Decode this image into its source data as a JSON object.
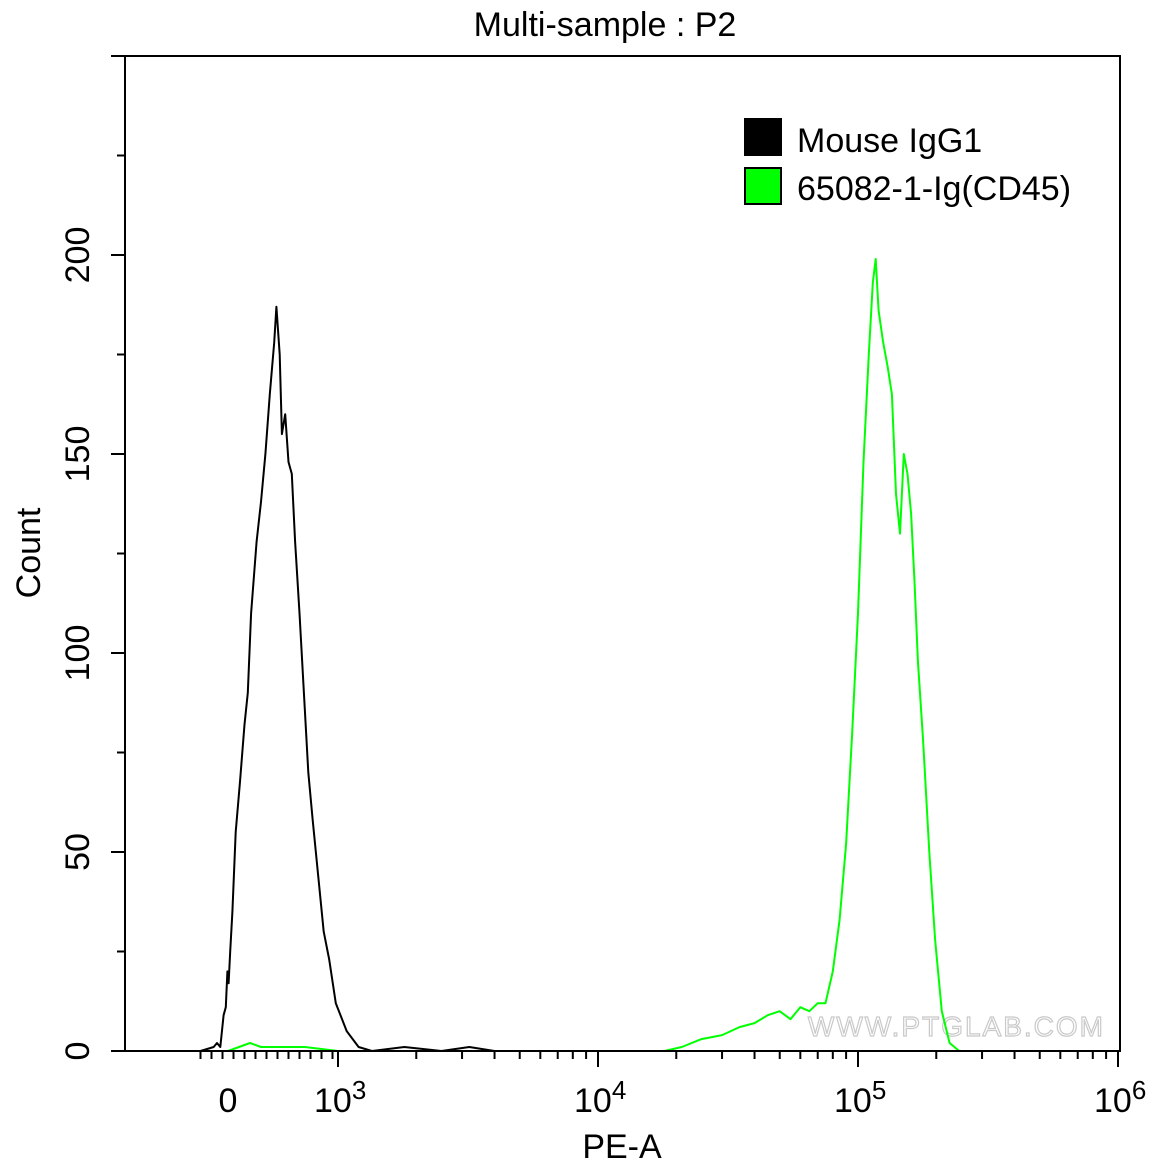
{
  "chart_data": {
    "type": "histogram",
    "title": "Multi-sample : P2",
    "xlabel": "PE-A",
    "ylabel": "Count",
    "x_scale": "biexponential",
    "x_range": [
      -250,
      1000000
    ],
    "ylim": [
      0,
      250
    ],
    "y_ticks": [
      0,
      50,
      100,
      150,
      200
    ],
    "x_tick_labels": [
      {
        "value": 0,
        "base": "0",
        "exp": ""
      },
      {
        "value": 1000,
        "base": "10",
        "exp": "3"
      },
      {
        "value": 10000,
        "base": "10",
        "exp": "4"
      },
      {
        "value": 100000,
        "base": "10",
        "exp": "5"
      },
      {
        "value": 1000000,
        "base": "10",
        "exp": "6"
      }
    ],
    "legend_position": "top-right",
    "watermark": "WWW.PTGLAB.COM",
    "series": [
      {
        "name": "Mouse IgG1",
        "color": "#000000",
        "points": [
          [
            -250,
            0
          ],
          [
            -130,
            1
          ],
          [
            -100,
            2
          ],
          [
            -70,
            1
          ],
          [
            -40,
            9
          ],
          [
            -20,
            11
          ],
          [
            -5,
            20
          ],
          [
            5,
            17
          ],
          [
            20,
            25
          ],
          [
            40,
            35
          ],
          [
            70,
            55
          ],
          [
            110,
            68
          ],
          [
            150,
            82
          ],
          [
            180,
            90
          ],
          [
            210,
            110
          ],
          [
            260,
            128
          ],
          [
            300,
            138
          ],
          [
            340,
            150
          ],
          [
            380,
            165
          ],
          [
            420,
            178
          ],
          [
            440,
            187
          ],
          [
            470,
            175
          ],
          [
            490,
            155
          ],
          [
            520,
            160
          ],
          [
            550,
            148
          ],
          [
            580,
            145
          ],
          [
            610,
            128
          ],
          [
            650,
            110
          ],
          [
            690,
            90
          ],
          [
            730,
            70
          ],
          [
            770,
            58
          ],
          [
            820,
            44
          ],
          [
            870,
            30
          ],
          [
            920,
            23
          ],
          [
            980,
            12
          ],
          [
            1080,
            5
          ],
          [
            1200,
            1
          ],
          [
            1350,
            0
          ],
          [
            1800,
            1
          ],
          [
            2500,
            0
          ],
          [
            3200,
            1
          ],
          [
            4000,
            0
          ],
          [
            1000000,
            0
          ]
        ]
      },
      {
        "name": "65082-1-Ig(CD45)",
        "color": "#00ff00",
        "points": [
          [
            -250,
            0
          ],
          [
            0,
            0
          ],
          [
            100,
            1
          ],
          [
            200,
            2
          ],
          [
            300,
            1
          ],
          [
            500,
            1
          ],
          [
            700,
            1
          ],
          [
            1000,
            0
          ],
          [
            18000,
            0
          ],
          [
            21000,
            1
          ],
          [
            25000,
            3
          ],
          [
            30000,
            4
          ],
          [
            35000,
            6
          ],
          [
            40000,
            7
          ],
          [
            45000,
            9
          ],
          [
            50000,
            10
          ],
          [
            55000,
            8
          ],
          [
            60000,
            11
          ],
          [
            65000,
            10
          ],
          [
            70000,
            12
          ],
          [
            75000,
            12
          ],
          [
            80000,
            20
          ],
          [
            85000,
            33
          ],
          [
            90000,
            52
          ],
          [
            95000,
            80
          ],
          [
            100000,
            110
          ],
          [
            105000,
            148
          ],
          [
            110000,
            175
          ],
          [
            114000,
            193
          ],
          [
            117000,
            199
          ],
          [
            120000,
            186
          ],
          [
            125000,
            178
          ],
          [
            130000,
            172
          ],
          [
            135000,
            165
          ],
          [
            140000,
            140
          ],
          [
            145000,
            130
          ],
          [
            150000,
            150
          ],
          [
            155000,
            145
          ],
          [
            160000,
            135
          ],
          [
            165000,
            118
          ],
          [
            170000,
            98
          ],
          [
            178000,
            78
          ],
          [
            188000,
            50
          ],
          [
            198000,
            28
          ],
          [
            210000,
            10
          ],
          [
            225000,
            2
          ],
          [
            245000,
            0
          ],
          [
            1000000,
            0
          ]
        ]
      }
    ]
  }
}
